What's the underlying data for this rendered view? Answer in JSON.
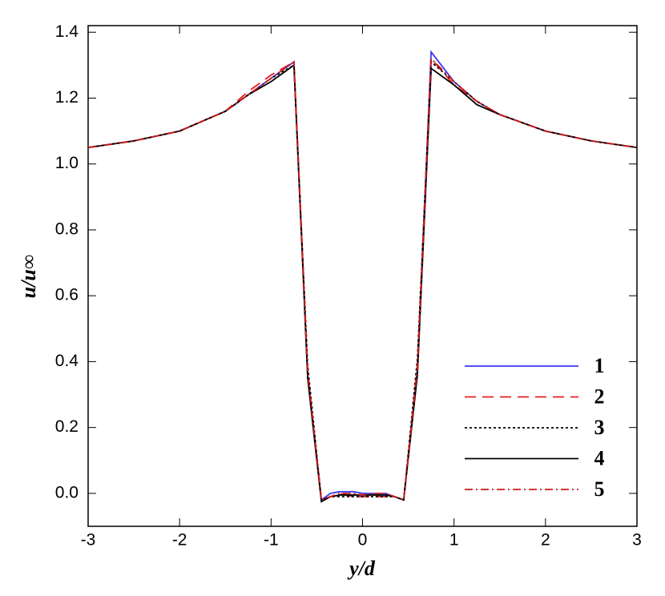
{
  "chart_data": {
    "type": "line",
    "xlabel": "y/d",
    "ylabel": "u/u∞",
    "x": [
      -3,
      -2.5,
      -2,
      -1.5,
      -1.25,
      -1,
      -0.75,
      -0.6,
      -0.45,
      -0.35,
      -0.25,
      -0.1,
      0,
      0.1,
      0.25,
      0.35,
      0.45,
      0.6,
      0.75,
      1,
      1.25,
      1.5,
      2,
      2.5,
      3
    ],
    "series": [
      {
        "name": "1",
        "color": "#3a3af0",
        "dash": "solid",
        "values": [
          1.05,
          1.07,
          1.1,
          1.16,
          1.21,
          1.26,
          1.31,
          0.36,
          -0.02,
          0.0,
          0.005,
          0.005,
          0.0,
          0.0,
          0.0,
          -0.01,
          -0.02,
          0.38,
          1.34,
          1.25,
          1.19,
          1.15,
          1.1,
          1.07,
          1.05
        ]
      },
      {
        "name": "2",
        "color": "#e02020",
        "dash": "dashed",
        "values": [
          1.05,
          1.07,
          1.1,
          1.16,
          1.22,
          1.27,
          1.31,
          0.37,
          -0.02,
          -0.01,
          0.0,
          -0.01,
          -0.01,
          -0.01,
          -0.01,
          -0.01,
          -0.02,
          0.39,
          1.32,
          1.24,
          1.19,
          1.15,
          1.1,
          1.07,
          1.05
        ]
      },
      {
        "name": "3",
        "color": "#000000",
        "dash": "dotted",
        "values": [
          1.05,
          1.07,
          1.1,
          1.16,
          1.21,
          1.26,
          1.3,
          0.39,
          -0.02,
          -0.01,
          -0.01,
          -0.01,
          -0.01,
          -0.01,
          -0.01,
          -0.01,
          -0.02,
          0.41,
          1.31,
          1.25,
          1.19,
          1.15,
          1.1,
          1.07,
          1.05
        ]
      },
      {
        "name": "4",
        "color": "#000000",
        "dash": "solid",
        "values": [
          1.05,
          1.07,
          1.1,
          1.16,
          1.21,
          1.25,
          1.3,
          0.35,
          -0.025,
          -0.01,
          -0.005,
          -0.005,
          -0.005,
          -0.005,
          -0.005,
          -0.01,
          -0.02,
          0.36,
          1.29,
          1.24,
          1.18,
          1.15,
          1.1,
          1.07,
          1.05
        ]
      },
      {
        "name": "5",
        "color": "#d01818",
        "dash": "dashdot",
        "values": [
          1.05,
          1.07,
          1.1,
          1.16,
          1.21,
          1.26,
          1.31,
          0.37,
          -0.02,
          -0.01,
          0.0,
          0.0,
          -0.005,
          0.0,
          0.0,
          -0.01,
          -0.02,
          0.38,
          1.32,
          1.25,
          1.19,
          1.15,
          1.1,
          1.07,
          1.05
        ]
      }
    ],
    "xlim": [
      -3,
      3
    ],
    "xticks": [
      -3,
      -2,
      -1,
      0,
      1,
      2,
      3
    ],
    "ylim": [
      -0.1,
      1.42
    ],
    "yticks": [
      {
        "value": 0,
        "label": "0.0"
      },
      0.2,
      0.4,
      0.6,
      0.8,
      {
        "value": 1,
        "label": "1.0"
      },
      1.2,
      1.4
    ],
    "legend": "lower right"
  }
}
